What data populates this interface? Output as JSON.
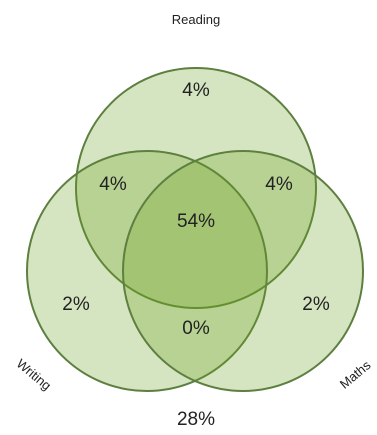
{
  "chart_data": {
    "type": "venn",
    "sets": [
      {
        "name": "Reading"
      },
      {
        "name": "Writing"
      },
      {
        "name": "Maths"
      }
    ],
    "regions": {
      "reading_only": "4%",
      "reading_writing": "4%",
      "reading_maths": "4%",
      "all_three": "54%",
      "writing_only": "2%",
      "maths_only": "2%",
      "writing_maths": "0%",
      "none": "28%"
    },
    "colors": {
      "fill": "#6aa321",
      "stroke": "#5d7f3f"
    }
  }
}
